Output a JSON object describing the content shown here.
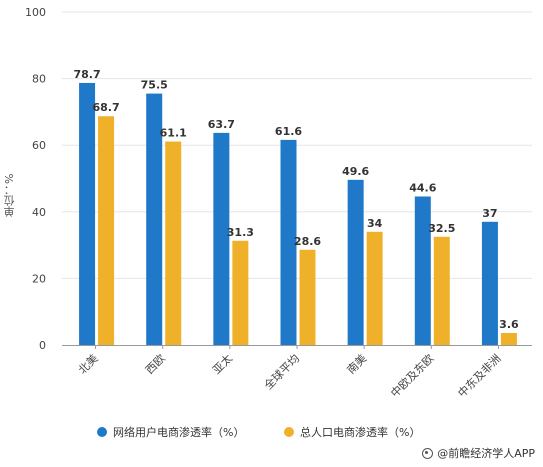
{
  "chart_data": {
    "type": "bar",
    "ylabel": "单位：%",
    "ylim": [
      0,
      100
    ],
    "yticks": [
      0,
      20,
      40,
      60,
      80,
      100
    ],
    "grid": true,
    "categories": [
      "北美",
      "西欧",
      "亚太",
      "全球平均",
      "南美",
      "中欧及东欧",
      "中东及非洲"
    ],
    "series": [
      {
        "name": "网络用户电商渗透率（%）",
        "color": "#1f78c8",
        "values": [
          78.7,
          75.5,
          63.7,
          61.6,
          49.6,
          44.6,
          37
        ]
      },
      {
        "name": "总人口电商渗透率（%）",
        "color": "#f0b12a",
        "values": [
          68.7,
          61.1,
          31.3,
          28.6,
          34,
          32.5,
          3.6
        ]
      }
    ],
    "legend_position": "bottom",
    "labels_shown": [
      "78.7",
      "68.7",
      "75.5",
      "61.1",
      "63.7",
      "31.3",
      "61.6",
      "28.6",
      "49.6",
      "34",
      "44.6",
      "32.5",
      "37",
      "3.6"
    ]
  },
  "credit": "@前瞻经济学人APP"
}
